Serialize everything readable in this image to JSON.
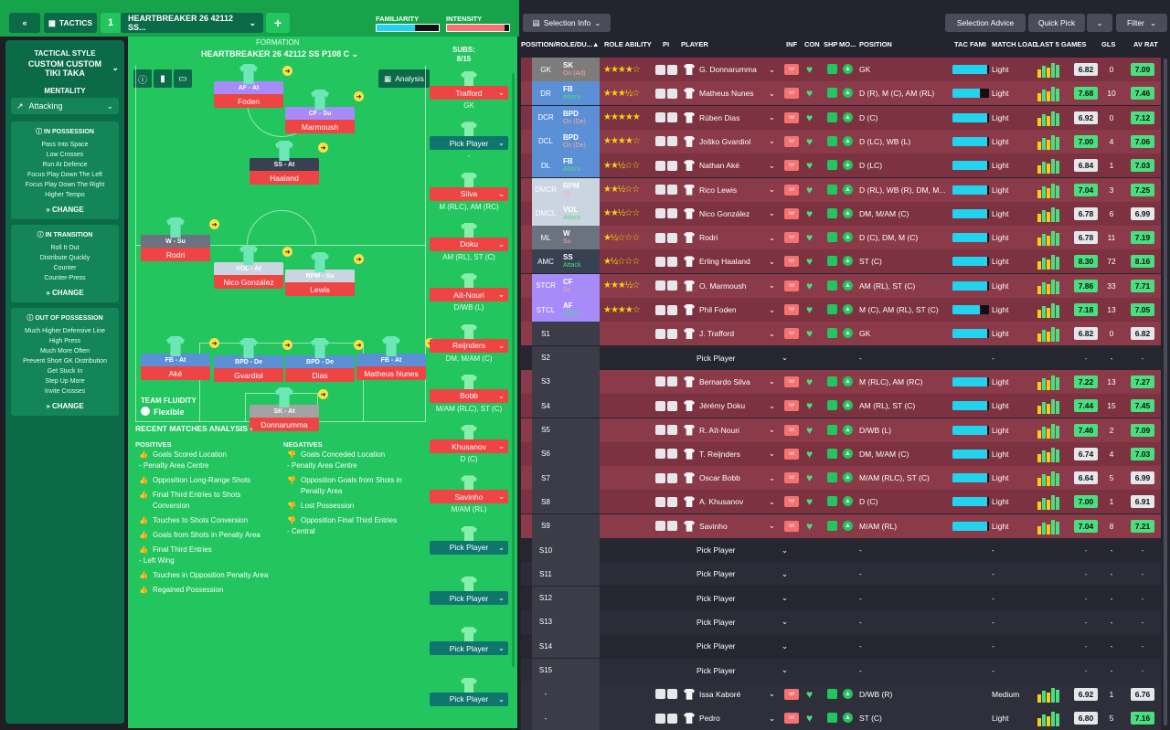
{
  "topbar": {
    "back": "«",
    "tactics": "TACTICS",
    "slot": "1",
    "tactic_name": "HEARTBREAKER 26 42112 SS...",
    "plus": "+",
    "familiarity": "FAMILIARITY",
    "intensity": "INTENSITY"
  },
  "left": {
    "style_label": "TACTICAL STYLE",
    "style_name": "CUSTOM CUSTOM TIKI TAKA",
    "mentality_label": "MENTALITY",
    "mentality": "Attacking",
    "in_possession": {
      "title": "IN POSSESSION",
      "items": [
        "Pass Into Space",
        "Low Crosses",
        "Run At Defence",
        "Focus Play Down The Left",
        "Focus Play Down The Right",
        "Higher Tempo"
      ],
      "change": "CHANGE"
    },
    "in_transition": {
      "title": "IN TRANSITION",
      "items": [
        "Roll It Out",
        "Distribute Quickly",
        "Counter",
        "Counter-Press"
      ],
      "change": "CHANGE"
    },
    "out_possession": {
      "title": "OUT OF POSSESSION",
      "items": [
        "Much Higher Defensive Line",
        "High Press",
        "Much More Often",
        "Prevent Short GK Distribution",
        "Get Stuck In",
        "Step Up More",
        "Invite Crosses"
      ],
      "change": "CHANGE"
    }
  },
  "formation": {
    "label": "FORMATION",
    "name": "HEARTBREAKER 26 42112 SS P108 C",
    "analysis": "Analysis",
    "team_fluidity": "TEAM FLUIDITY",
    "fluidity": "Flexible"
  },
  "players": [
    {
      "role": "AF - At",
      "name": "Foden",
      "rc": "#a78bfa"
    },
    {
      "role": "CF - Su",
      "name": "Marmoush",
      "rc": "#a78bfa"
    },
    {
      "role": "SS - At",
      "name": "Haaland",
      "rc": "#374151"
    },
    {
      "role": "W - Su",
      "name": "Rodri",
      "rc": "#6b7280"
    },
    {
      "role": "VOL - At",
      "name": "Nico González",
      "rc": "#cbd5e1"
    },
    {
      "role": "RPM - Su",
      "name": "Lewis",
      "rc": "#cbd5e1"
    },
    {
      "role": "FB - At",
      "name": "Aké",
      "rc": "#5b8fd6"
    },
    {
      "role": "BPD - De",
      "name": "Gvardiol",
      "rc": "#5b8fd6"
    },
    {
      "role": "BPD - De",
      "name": "Dias",
      "rc": "#5b8fd6"
    },
    {
      "role": "FB - At",
      "name": "Matheus Nunes",
      "rc": "#5b8fd6"
    },
    {
      "role": "SK - At",
      "name": "Donnarumma",
      "rc": "#a3a3a3"
    }
  ],
  "subs": {
    "label": "SUBS:",
    "count": "8/15",
    "list": [
      {
        "name": "Trafford",
        "pos": "GK"
      },
      {
        "name": "Pick Player",
        "pos": "-"
      },
      {
        "name": "Silva",
        "pos": "M (RLC), AM (RC)"
      },
      {
        "name": "Doku",
        "pos": "AM (RL), ST (C)"
      },
      {
        "name": "Aït-Nouri",
        "pos": "D/WB (L)"
      },
      {
        "name": "Reijnders",
        "pos": "DM, M/AM (C)"
      },
      {
        "name": "Bobb",
        "pos": "M/AM (RLC), ST (C)"
      },
      {
        "name": "Khusanov",
        "pos": "D (C)"
      },
      {
        "name": "Savinho",
        "pos": "M/AM (RL)"
      },
      {
        "name": "Pick Player",
        "pos": ""
      },
      {
        "name": "Pick Player",
        "pos": ""
      },
      {
        "name": "Pick Player",
        "pos": ""
      },
      {
        "name": "Pick Player",
        "pos": ""
      }
    ]
  },
  "analysis": {
    "title": "RECENT MATCHES ANALYSIS",
    "pos_label": "POSITIVES",
    "neg_label": "NEGATIVES",
    "positives": [
      {
        "t": "Goals Scored Location",
        "s": "- Penalty Area Centre"
      },
      {
        "t": "Opposition Long-Range Shots",
        "s": ""
      },
      {
        "t": "Final Third Entries to Shots Conversion",
        "s": ""
      },
      {
        "t": "Touches to Shots Conversion",
        "s": ""
      },
      {
        "t": "Goals from Shots in Penalty Area",
        "s": ""
      },
      {
        "t": "Final Third Entries",
        "s": "- Left Wing"
      },
      {
        "t": "Touches in Opposition Penalty Area",
        "s": ""
      },
      {
        "t": "Regained Possession",
        "s": ""
      }
    ],
    "negatives": [
      {
        "t": "Goals Conceded Location",
        "s": "- Penalty Area Centre"
      },
      {
        "t": "Opposition Goals from Shots in Penalty Area",
        "s": ""
      },
      {
        "t": "Lost Possession",
        "s": ""
      },
      {
        "t": "Opposition Final Third Entries",
        "s": "- Central"
      }
    ]
  },
  "right": {
    "selection_info": "Selection Info",
    "selection_advice": "Selection Advice",
    "quick_pick": "Quick Pick",
    "filter": "Filter",
    "headers": [
      "POSITION/ROLE/DU...",
      "ROLE ABILITY",
      "PI",
      "PLAYER",
      "INF",
      "CON",
      "SHP",
      "MO...",
      "POSITION",
      "TAC FAMI",
      "MATCH LOAD",
      "LAST 5 GAMES",
      "GLS",
      "AV RAT"
    ],
    "rows": [
      {
        "pos": "GK",
        "role": "SK",
        "duty": "On (Ad)",
        "stars": "★★★★☆",
        "player": "G. Donnarumma",
        "position": "GK",
        "tac": 0.95,
        "load": "Light",
        "avg": "6.82",
        "gls": "0",
        "avr": "7.09",
        "pc": "#7c7c7c"
      },
      {
        "pos": "DR",
        "role": "FB",
        "duty": "Attack",
        "stars": "★★★½☆",
        "player": "Matheus Nunes",
        "position": "D (R), M (C), AM (RL)",
        "tac": 0.75,
        "load": "Light",
        "avg": "7.68",
        "gls": "10",
        "avr": "7.46",
        "pc": "#5b8fd6"
      },
      {
        "pos": "DCR",
        "role": "BPD",
        "duty": "On (De)",
        "stars": "★★★★★",
        "player": "Rúben Dias",
        "position": "D (C)",
        "tac": 0.95,
        "load": "Light",
        "avg": "6.92",
        "gls": "0",
        "avr": "7.12",
        "pc": "#5b8fd6"
      },
      {
        "pos": "DCL",
        "role": "BPD",
        "duty": "On (De)",
        "stars": "★★★★☆",
        "player": "Joško Gvardiol",
        "position": "D (LC), WB (L)",
        "tac": 0.95,
        "load": "Light",
        "avg": "7.00",
        "gls": "4",
        "avr": "7.06",
        "pc": "#5b8fd6"
      },
      {
        "pos": "DL",
        "role": "FB",
        "duty": "Attack",
        "stars": "★★½☆☆",
        "player": "Nathan Aké",
        "position": "D (LC)",
        "tac": 0.95,
        "load": "Light",
        "avg": "6.84",
        "gls": "1",
        "avr": "7.03",
        "pc": "#5b8fd6"
      },
      {
        "pos": "DMCR",
        "role": "RPM",
        "duty": "Su",
        "stars": "★★½☆☆",
        "player": "Rico Lewis",
        "position": "D (RL), WB (R), DM, M...",
        "tac": 0.95,
        "load": "Light",
        "avg": "7.04",
        "gls": "3",
        "avr": "7.25",
        "pc": "#cbd5e1"
      },
      {
        "pos": "DMCL",
        "role": "VOL",
        "duty": "Attack",
        "stars": "★★½☆☆",
        "player": "Nico González",
        "position": "DM, M/AM (C)",
        "tac": 0.95,
        "load": "Light",
        "avg": "6.78",
        "gls": "6",
        "avr": "6.99",
        "pc": "#cbd5e1"
      },
      {
        "pos": "ML",
        "role": "W",
        "duty": "Su",
        "stars": "★½☆☆☆",
        "player": "Rodri",
        "position": "D (C), DM, M (C)",
        "tac": 0.95,
        "load": "Light",
        "avg": "6.78",
        "gls": "11",
        "avr": "7.19",
        "pc": "#6b7280"
      },
      {
        "pos": "AMC",
        "role": "SS",
        "duty": "Attack",
        "stars": "★½☆☆☆",
        "player": "Erling Haaland",
        "position": "ST (C)",
        "tac": 0.95,
        "load": "Light",
        "avg": "8.30",
        "gls": "72",
        "avr": "8.16",
        "pc": "#374151"
      },
      {
        "pos": "STCR",
        "role": "CF",
        "duty": "Su",
        "stars": "★★★½☆",
        "player": "O. Marmoush",
        "position": "AM (RL), ST (C)",
        "tac": 0.95,
        "load": "Light",
        "avg": "7.86",
        "gls": "33",
        "avr": "7.71",
        "pc": "#a78bfa"
      },
      {
        "pos": "STCL",
        "role": "AF",
        "duty": "Attack",
        "stars": "★★★★☆",
        "player": "Phil Foden",
        "position": "M (C), AM (RL), ST (C)",
        "tac": 0.75,
        "load": "Light",
        "avg": "7.18",
        "gls": "13",
        "avr": "7.05",
        "pc": "#a78bfa"
      },
      {
        "pos": "S1",
        "role": "",
        "duty": "",
        "stars": "",
        "player": "J. Trafford",
        "position": "GK",
        "tac": 0.95,
        "load": "Light",
        "avg": "6.82",
        "gls": "0",
        "avr": "6.82",
        "pc": ""
      },
      {
        "pos": "S2",
        "role": "",
        "duty": "",
        "stars": "",
        "player": "Pick Player",
        "position": "-",
        "tac": 0,
        "load": "-",
        "avg": "-",
        "gls": "-",
        "avr": "-",
        "pc": ""
      },
      {
        "pos": "S3",
        "role": "",
        "duty": "",
        "stars": "",
        "player": "Bernardo Silva",
        "position": "M (RLC), AM (RC)",
        "tac": 0.95,
        "load": "Light",
        "avg": "7.22",
        "gls": "13",
        "avr": "7.27",
        "pc": ""
      },
      {
        "pos": "S4",
        "role": "",
        "duty": "",
        "stars": "",
        "player": "Jérémy Doku",
        "position": "AM (RL), ST (C)",
        "tac": 0.95,
        "load": "Light",
        "avg": "7.44",
        "gls": "15",
        "avr": "7.45",
        "pc": ""
      },
      {
        "pos": "S5",
        "role": "",
        "duty": "",
        "stars": "",
        "player": "R. Aït-Nouri",
        "position": "D/WB (L)",
        "tac": 0.95,
        "load": "Light",
        "avg": "7.46",
        "gls": "2",
        "avr": "7.09",
        "pc": ""
      },
      {
        "pos": "S6",
        "role": "",
        "duty": "",
        "stars": "",
        "player": "T. Reijnders",
        "position": "DM, M/AM (C)",
        "tac": 0.95,
        "load": "Light",
        "avg": "6.74",
        "gls": "4",
        "avr": "7.03",
        "pc": ""
      },
      {
        "pos": "S7",
        "role": "",
        "duty": "",
        "stars": "",
        "player": "Oscar Bobb",
        "position": "M/AM (RLC), ST (C)",
        "tac": 0.95,
        "load": "Light",
        "avg": "6.64",
        "gls": "5",
        "avr": "6.99",
        "pc": ""
      },
      {
        "pos": "S8",
        "role": "",
        "duty": "",
        "stars": "",
        "player": "A. Khusanov",
        "position": "D (C)",
        "tac": 0.95,
        "load": "Light",
        "avg": "7.00",
        "gls": "1",
        "avr": "6.91",
        "pc": ""
      },
      {
        "pos": "S9",
        "role": "",
        "duty": "",
        "stars": "",
        "player": "Savinho",
        "position": "M/AM (RL)",
        "tac": 0.95,
        "load": "Light",
        "avg": "7.04",
        "gls": "8",
        "avr": "7.21",
        "pc": ""
      },
      {
        "pos": "S10",
        "role": "",
        "duty": "",
        "stars": "",
        "player": "Pick Player",
        "position": "-",
        "tac": 0,
        "load": "-",
        "avg": "-",
        "gls": "-",
        "avr": "-",
        "pc": ""
      },
      {
        "pos": "S11",
        "role": "",
        "duty": "",
        "stars": "",
        "player": "Pick Player",
        "position": "-",
        "tac": 0,
        "load": "-",
        "avg": "-",
        "gls": "-",
        "avr": "-",
        "pc": ""
      },
      {
        "pos": "S12",
        "role": "",
        "duty": "",
        "stars": "",
        "player": "Pick Player",
        "position": "-",
        "tac": 0,
        "load": "-",
        "avg": "-",
        "gls": "-",
        "avr": "-",
        "pc": ""
      },
      {
        "pos": "S13",
        "role": "",
        "duty": "",
        "stars": "",
        "player": "Pick Player",
        "position": "-",
        "tac": 0,
        "load": "-",
        "avg": "-",
        "gls": "-",
        "avr": "-",
        "pc": ""
      },
      {
        "pos": "S14",
        "role": "",
        "duty": "",
        "stars": "",
        "player": "Pick Player",
        "position": "-",
        "tac": 0,
        "load": "-",
        "avg": "-",
        "gls": "-",
        "avr": "-",
        "pc": ""
      },
      {
        "pos": "S15",
        "role": "",
        "duty": "",
        "stars": "",
        "player": "Pick Player",
        "position": "-",
        "tac": 0,
        "load": "-",
        "avg": "-",
        "gls": "-",
        "avr": "-",
        "pc": ""
      },
      {
        "pos": "-",
        "role": "",
        "duty": "",
        "stars": "",
        "player": "Issa Kaboré",
        "position": "D/WB (R)",
        "tac": 0,
        "load": "Medium",
        "avg": "6.92",
        "gls": "1",
        "avr": "6.76",
        "pc": ""
      },
      {
        "pos": "-",
        "role": "",
        "duty": "",
        "stars": "",
        "player": "Pedro",
        "position": "ST (C)",
        "tac": 0,
        "load": "Light",
        "avg": "6.80",
        "gls": "5",
        "avr": "7.16",
        "pc": ""
      }
    ]
  }
}
